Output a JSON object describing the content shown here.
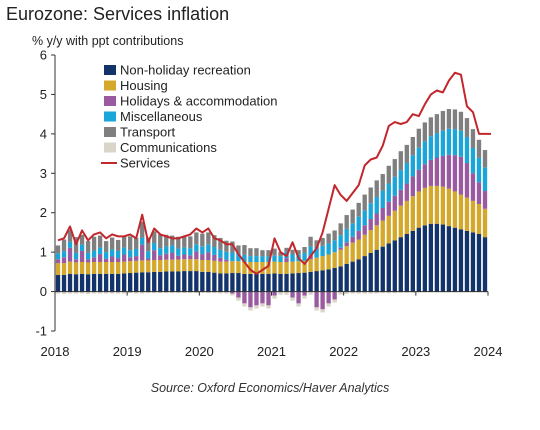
{
  "chart_data": {
    "type": "bar",
    "stacked": true,
    "title": "Eurozone: Services inflation",
    "subtitle": "% y/y with ppt contributions",
    "source": "Source: Oxford Economics/Haver Analytics",
    "ylim": [
      -1,
      6
    ],
    "y_ticks": [
      "-1",
      "0",
      "1",
      "2",
      "3",
      "4",
      "5",
      "6"
    ],
    "x_ticks": [
      "2018",
      "2019",
      "2020",
      "2021",
      "2022",
      "2023",
      "2024"
    ],
    "x_range": [
      "2018-01",
      "2024-01"
    ],
    "legend_position": "top-left",
    "grid": false,
    "months": [
      "2018-01",
      "2018-02",
      "2018-03",
      "2018-04",
      "2018-05",
      "2018-06",
      "2018-07",
      "2018-08",
      "2018-09",
      "2018-10",
      "2018-11",
      "2018-12",
      "2019-01",
      "2019-02",
      "2019-03",
      "2019-04",
      "2019-05",
      "2019-06",
      "2019-07",
      "2019-08",
      "2019-09",
      "2019-10",
      "2019-11",
      "2019-12",
      "2020-01",
      "2020-02",
      "2020-03",
      "2020-04",
      "2020-05",
      "2020-06",
      "2020-07",
      "2020-08",
      "2020-09",
      "2020-10",
      "2020-11",
      "2020-12",
      "2021-01",
      "2021-02",
      "2021-03",
      "2021-04",
      "2021-05",
      "2021-06",
      "2021-07",
      "2021-08",
      "2021-09",
      "2021-10",
      "2021-11",
      "2021-12",
      "2022-01",
      "2022-02",
      "2022-03",
      "2022-04",
      "2022-05",
      "2022-06",
      "2022-07",
      "2022-08",
      "2022-09",
      "2022-10",
      "2022-11",
      "2022-12",
      "2023-01",
      "2023-02",
      "2023-03",
      "2023-04",
      "2023-05",
      "2023-06",
      "2023-07",
      "2023-08",
      "2023-09",
      "2023-10",
      "2023-11",
      "2023-12"
    ],
    "series": [
      {
        "name": "Non-holiday recreation",
        "color": "#12346b",
        "values": [
          0.42,
          0.42,
          0.45,
          0.44,
          0.45,
          0.44,
          0.45,
          0.45,
          0.45,
          0.45,
          0.45,
          0.46,
          0.47,
          0.48,
          0.49,
          0.49,
          0.5,
          0.5,
          0.51,
          0.51,
          0.51,
          0.52,
          0.52,
          0.52,
          0.5,
          0.5,
          0.48,
          0.46,
          0.46,
          0.47,
          0.47,
          0.45,
          0.45,
          0.45,
          0.45,
          0.45,
          0.46,
          0.45,
          0.45,
          0.46,
          0.47,
          0.48,
          0.5,
          0.52,
          0.54,
          0.56,
          0.6,
          0.64,
          0.7,
          0.76,
          0.82,
          0.9,
          0.98,
          1.06,
          1.14,
          1.22,
          1.3,
          1.38,
          1.46,
          1.54,
          1.62,
          1.68,
          1.72,
          1.72,
          1.7,
          1.66,
          1.62,
          1.58,
          1.54,
          1.5,
          1.46,
          1.38
        ]
      },
      {
        "name": "Housing",
        "color": "#d4a82a",
        "values": [
          0.3,
          0.3,
          0.31,
          0.3,
          0.3,
          0.3,
          0.3,
          0.3,
          0.3,
          0.3,
          0.3,
          0.3,
          0.3,
          0.3,
          0.3,
          0.3,
          0.3,
          0.3,
          0.3,
          0.3,
          0.3,
          0.3,
          0.3,
          0.3,
          0.3,
          0.3,
          0.3,
          0.3,
          0.3,
          0.3,
          0.3,
          0.3,
          0.3,
          0.3,
          0.3,
          0.3,
          0.3,
          0.3,
          0.3,
          0.3,
          0.3,
          0.3,
          0.32,
          0.34,
          0.36,
          0.38,
          0.4,
          0.42,
          0.45,
          0.48,
          0.5,
          0.54,
          0.58,
          0.62,
          0.66,
          0.7,
          0.75,
          0.8,
          0.84,
          0.88,
          0.92,
          0.95,
          0.96,
          0.96,
          0.96,
          0.95,
          0.92,
          0.88,
          0.84,
          0.8,
          0.76,
          0.72
        ]
      },
      {
        "name": "Holidays & accommodation",
        "color": "#9a5a9f",
        "values": [
          0.1,
          0.15,
          0.35,
          0.08,
          0.28,
          0.08,
          0.12,
          0.2,
          0.08,
          0.14,
          0.1,
          0.18,
          0.1,
          0.12,
          0.4,
          0.05,
          0.25,
          0.12,
          0.15,
          0.18,
          0.1,
          0.12,
          0.1,
          0.2,
          0.15,
          0.2,
          0.15,
          0.1,
          0.05,
          -0.05,
          -0.15,
          -0.3,
          -0.4,
          -0.35,
          -0.3,
          -0.35,
          -0.1,
          0.0,
          0.1,
          -0.15,
          -0.3,
          -0.1,
          0.1,
          -0.4,
          -0.45,
          -0.3,
          -0.2,
          0.05,
          0.1,
          0.15,
          0.22,
          0.24,
          0.28,
          0.3,
          0.32,
          0.36,
          0.38,
          0.4,
          0.44,
          0.5,
          0.55,
          0.6,
          0.66,
          0.72,
          0.78,
          0.86,
          0.92,
          0.96,
          0.88,
          0.7,
          0.55,
          0.45
        ]
      },
      {
        "name": "Miscellaneous",
        "color": "#1ba6d9",
        "values": [
          0.15,
          0.15,
          0.15,
          0.16,
          0.16,
          0.16,
          0.17,
          0.17,
          0.17,
          0.18,
          0.18,
          0.18,
          0.18,
          0.18,
          0.18,
          0.18,
          0.18,
          0.18,
          0.18,
          0.18,
          0.18,
          0.18,
          0.18,
          0.18,
          0.2,
          0.2,
          0.2,
          0.2,
          0.2,
          0.22,
          0.2,
          0.18,
          0.15,
          0.15,
          0.15,
          0.15,
          0.15,
          0.15,
          0.16,
          0.18,
          0.18,
          0.2,
          0.22,
          0.24,
          0.26,
          0.28,
          0.3,
          0.32,
          0.34,
          0.34,
          0.36,
          0.38,
          0.4,
          0.42,
          0.44,
          0.46,
          0.48,
          0.5,
          0.52,
          0.54,
          0.56,
          0.58,
          0.6,
          0.62,
          0.64,
          0.66,
          0.66,
          0.66,
          0.66,
          0.64,
          0.62,
          0.6
        ]
      },
      {
        "name": "Transport",
        "color": "#7f7f7f",
        "values": [
          0.2,
          0.3,
          0.3,
          0.4,
          0.25,
          0.3,
          0.35,
          0.3,
          0.28,
          0.3,
          0.28,
          0.3,
          0.35,
          0.28,
          0.4,
          0.35,
          0.3,
          0.35,
          0.3,
          0.25,
          0.3,
          0.28,
          0.3,
          0.3,
          0.32,
          0.3,
          0.3,
          0.3,
          0.28,
          0.28,
          0.2,
          0.25,
          0.2,
          0.2,
          0.15,
          0.15,
          0.18,
          0.1,
          0.1,
          0.12,
          0.1,
          0.15,
          0.25,
          0.2,
          0.2,
          0.25,
          0.25,
          0.3,
          0.35,
          0.35,
          0.35,
          0.4,
          0.4,
          0.42,
          0.42,
          0.45,
          0.45,
          0.48,
          0.46,
          0.46,
          0.48,
          0.48,
          0.48,
          0.48,
          0.5,
          0.5,
          0.5,
          0.48,
          0.48,
          0.48,
          0.46,
          0.44
        ]
      },
      {
        "name": "Communications",
        "color": "#d9d5c8",
        "values": [
          -0.05,
          -0.06,
          -0.05,
          -0.05,
          -0.05,
          -0.06,
          -0.05,
          -0.05,
          -0.05,
          -0.05,
          -0.05,
          -0.05,
          -0.04,
          -0.05,
          -0.05,
          -0.04,
          -0.04,
          -0.04,
          -0.04,
          -0.04,
          -0.04,
          -0.04,
          -0.04,
          -0.04,
          -0.03,
          -0.04,
          -0.04,
          -0.05,
          -0.05,
          -0.05,
          -0.08,
          -0.08,
          -0.08,
          -0.08,
          -0.08,
          -0.08,
          -0.08,
          -0.08,
          -0.08,
          -0.08,
          -0.08,
          -0.08,
          -0.08,
          -0.08,
          -0.08,
          -0.08,
          -0.08,
          -0.08,
          -0.06,
          -0.05,
          -0.05,
          -0.05,
          -0.05,
          -0.05,
          -0.04,
          -0.04,
          -0.04,
          -0.03,
          -0.03,
          -0.03,
          -0.02,
          -0.02,
          -0.02,
          -0.02,
          -0.02,
          -0.02,
          -0.02,
          -0.02,
          -0.02,
          -0.02,
          -0.02,
          -0.02
        ]
      }
    ],
    "line_series": {
      "name": "Services",
      "color": "#c1272d",
      "points": [
        [
          "2018-01",
          1.3
        ],
        [
          "2018-02",
          1.35
        ],
        [
          "2018-03",
          1.65
        ],
        [
          "2018-04",
          1.2
        ],
        [
          "2018-05",
          1.55
        ],
        [
          "2018-06",
          1.3
        ],
        [
          "2018-07",
          1.45
        ],
        [
          "2018-08",
          1.5
        ],
        [
          "2018-09",
          1.35
        ],
        [
          "2018-10",
          1.45
        ],
        [
          "2018-11",
          1.4
        ],
        [
          "2018-12",
          1.4
        ],
        [
          "2019-01",
          1.45
        ],
        [
          "2019-02",
          1.35
        ],
        [
          "2019-03",
          1.95
        ],
        [
          "2019-04",
          1.25
        ],
        [
          "2019-05",
          1.6
        ],
        [
          "2019-06",
          1.45
        ],
        [
          "2019-07",
          1.4
        ],
        [
          "2019-08",
          1.35
        ],
        [
          "2019-09",
          1.35
        ],
        [
          "2019-10",
          1.4
        ],
        [
          "2019-11",
          1.45
        ],
        [
          "2019-12",
          1.6
        ],
        [
          "2020-01",
          1.5
        ],
        [
          "2020-02",
          1.6
        ],
        [
          "2020-03",
          1.35
        ],
        [
          "2020-04",
          1.3
        ],
        [
          "2020-05",
          1.2
        ],
        [
          "2020-06",
          1.2
        ],
        [
          "2020-07",
          0.95
        ],
        [
          "2020-08",
          0.75
        ],
        [
          "2020-09",
          0.55
        ],
        [
          "2020-10",
          0.45
        ],
        [
          "2020-11",
          0.55
        ],
        [
          "2020-12",
          0.65
        ],
        [
          "2021-01",
          1.35
        ],
        [
          "2021-02",
          1.0
        ],
        [
          "2021-03",
          0.9
        ],
        [
          "2021-04",
          1.25
        ],
        [
          "2021-05",
          0.85
        ],
        [
          "2021-06",
          0.7
        ],
        [
          "2021-07",
          0.9
        ],
        [
          "2021-08",
          1.1
        ],
        [
          "2021-09",
          1.5
        ],
        [
          "2021-10",
          2.1
        ],
        [
          "2021-11",
          2.7
        ],
        [
          "2021-12",
          2.45
        ],
        [
          "2022-01",
          2.3
        ],
        [
          "2022-02",
          2.5
        ],
        [
          "2022-03",
          2.7
        ],
        [
          "2022-04",
          3.2
        ],
        [
          "2022-05",
          3.35
        ],
        [
          "2022-06",
          3.4
        ],
        [
          "2022-07",
          3.7
        ],
        [
          "2022-08",
          4.2
        ],
        [
          "2022-09",
          4.3
        ],
        [
          "2022-10",
          4.25
        ],
        [
          "2022-11",
          4.3
        ],
        [
          "2022-12",
          4.5
        ],
        [
          "2023-01",
          4.45
        ],
        [
          "2023-02",
          4.75
        ],
        [
          "2023-03",
          5.0
        ],
        [
          "2023-04",
          5.1
        ],
        [
          "2023-05",
          5.05
        ],
        [
          "2023-06",
          5.35
        ],
        [
          "2023-07",
          5.55
        ],
        [
          "2023-08",
          5.5
        ],
        [
          "2023-09",
          4.7
        ],
        [
          "2023-10",
          4.55
        ],
        [
          "2023-11",
          4.0
        ],
        [
          "2023-12",
          4.0
        ],
        [
          "2024-01",
          4.0
        ]
      ]
    }
  }
}
